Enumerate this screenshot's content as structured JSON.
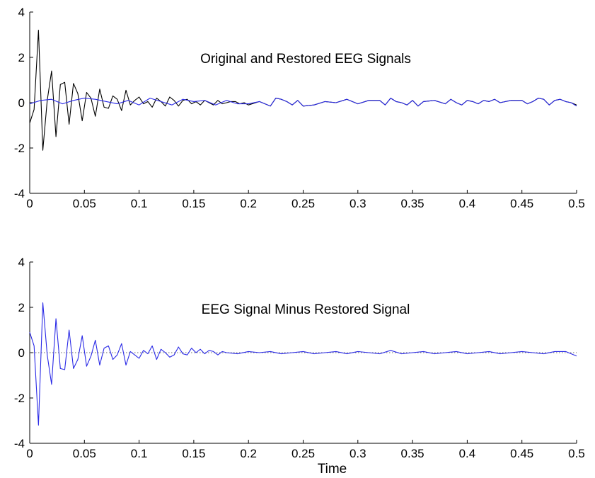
{
  "chart_data": [
    {
      "type": "line",
      "title": "Original and Restored EEG Signals",
      "xlabel": "",
      "ylabel": "",
      "xlim": [
        0,
        0.5
      ],
      "ylim": [
        -4,
        4
      ],
      "x_ticks": [
        0,
        0.05,
        0.1,
        0.15,
        0.2,
        0.25,
        0.3,
        0.35,
        0.4,
        0.45,
        0.5
      ],
      "x_tick_labels": [
        "0",
        "0.05",
        "0.1",
        "0.15",
        "0.2",
        "0.25",
        "0.3",
        "0.35",
        "0.4",
        "0.45",
        "0.5"
      ],
      "y_ticks": [
        -4,
        -2,
        0,
        2,
        4
      ],
      "y_tick_labels": [
        "-4",
        "-2",
        "0",
        "2",
        "4"
      ],
      "grid": false,
      "legend": "none",
      "series": [
        {
          "color": "#000000",
          "x": [
            0,
            0.004,
            0.008,
            0.012,
            0.016,
            0.02,
            0.024,
            0.028,
            0.032,
            0.036,
            0.04,
            0.044,
            0.048,
            0.052,
            0.056,
            0.06,
            0.064,
            0.068,
            0.072,
            0.076,
            0.08,
            0.084,
            0.088,
            0.092,
            0.096,
            0.1,
            0.104,
            0.108,
            0.112,
            0.116,
            0.12,
            0.124,
            0.128,
            0.132,
            0.136,
            0.14,
            0.144,
            0.148,
            0.152,
            0.156,
            0.16,
            0.164,
            0.168,
            0.172,
            0.176,
            0.18,
            0.184,
            0.188,
            0.192,
            0.196,
            0.2,
            0.21,
            0.22,
            0.225,
            0.23,
            0.235,
            0.24,
            0.245,
            0.25,
            0.26,
            0.27,
            0.28,
            0.29,
            0.3,
            0.31,
            0.32,
            0.325,
            0.33,
            0.335,
            0.34,
            0.345,
            0.35,
            0.355,
            0.36,
            0.37,
            0.38,
            0.385,
            0.39,
            0.395,
            0.4,
            0.405,
            0.41,
            0.415,
            0.42,
            0.425,
            0.43,
            0.44,
            0.45,
            0.455,
            0.46,
            0.465,
            0.47,
            0.475,
            0.48,
            0.485,
            0.49,
            0.495,
            0.5
          ],
          "y": [
            -0.9,
            -0.3,
            3.2,
            -2.1,
            0.1,
            1.4,
            -1.5,
            0.8,
            0.9,
            -0.95,
            0.85,
            0.4,
            -0.8,
            0.45,
            0.2,
            -0.6,
            0.6,
            -0.2,
            -0.25,
            0.3,
            0.15,
            -0.35,
            0.55,
            -0.1,
            0.1,
            0.25,
            -0.05,
            0.05,
            -0.2,
            0.2,
            0.05,
            -0.15,
            0.25,
            0.1,
            -0.15,
            0.1,
            0.15,
            -0.05,
            0.05,
            -0.1,
            0.1,
            0.0,
            -0.1,
            0.1,
            -0.05,
            0.0,
            0.05,
            0.05,
            -0.05,
            0.0,
            -0.1,
            0.05,
            -0.15,
            0.2,
            0.15,
            0.05,
            -0.1,
            0.1,
            -0.15,
            -0.1,
            0.05,
            0.0,
            0.15,
            -0.05,
            0.1,
            0.1,
            -0.1,
            0.2,
            0.05,
            0.0,
            -0.1,
            0.1,
            -0.15,
            0.05,
            0.1,
            -0.05,
            0.15,
            0.0,
            -0.1,
            0.1,
            0.05,
            -0.05,
            0.1,
            0.05,
            0.15,
            0.0,
            0.1,
            0.1,
            -0.05,
            0.05,
            0.2,
            0.15,
            -0.1,
            0.1,
            0.15,
            0.05,
            0.0,
            -0.1
          ]
        },
        {
          "color": "#2929e6",
          "x": [
            0,
            0.01,
            0.02,
            0.03,
            0.04,
            0.05,
            0.06,
            0.07,
            0.08,
            0.09,
            0.1,
            0.11,
            0.12,
            0.13,
            0.14,
            0.15,
            0.16,
            0.17,
            0.18,
            0.19,
            0.2,
            0.21,
            0.22,
            0.225,
            0.23,
            0.235,
            0.24,
            0.245,
            0.25,
            0.26,
            0.27,
            0.28,
            0.29,
            0.3,
            0.31,
            0.32,
            0.325,
            0.33,
            0.335,
            0.34,
            0.345,
            0.35,
            0.355,
            0.36,
            0.37,
            0.38,
            0.385,
            0.39,
            0.395,
            0.4,
            0.405,
            0.41,
            0.415,
            0.42,
            0.425,
            0.43,
            0.44,
            0.45,
            0.455,
            0.46,
            0.465,
            0.47,
            0.475,
            0.48,
            0.485,
            0.49,
            0.495,
            0.5
          ],
          "y": [
            -0.05,
            0.1,
            0.15,
            -0.05,
            0.1,
            0.2,
            0.15,
            0.05,
            -0.05,
            0.1,
            -0.1,
            0.2,
            0.05,
            -0.1,
            0.15,
            0.05,
            0.1,
            -0.1,
            0.1,
            -0.05,
            -0.05,
            0.05,
            -0.15,
            0.2,
            0.15,
            0.05,
            -0.1,
            0.1,
            -0.15,
            -0.1,
            0.05,
            0.0,
            0.15,
            -0.05,
            0.1,
            0.1,
            -0.1,
            0.2,
            0.05,
            0.0,
            -0.1,
            0.1,
            -0.15,
            0.05,
            0.1,
            -0.05,
            0.15,
            0.0,
            -0.1,
            0.1,
            0.05,
            -0.05,
            0.1,
            0.05,
            0.15,
            0.0,
            0.1,
            0.1,
            -0.05,
            0.05,
            0.2,
            0.15,
            -0.1,
            0.1,
            0.15,
            0.05,
            0.0,
            -0.15
          ]
        }
      ]
    },
    {
      "type": "line",
      "title": "EEG Signal Minus Restored Signal",
      "xlabel": "Time",
      "ylabel": "",
      "xlim": [
        0,
        0.5
      ],
      "ylim": [
        -4,
        4
      ],
      "x_ticks": [
        0,
        0.05,
        0.1,
        0.15,
        0.2,
        0.25,
        0.3,
        0.35,
        0.4,
        0.45,
        0.5
      ],
      "x_tick_labels": [
        "0",
        "0.05",
        "0.1",
        "0.15",
        "0.2",
        "0.25",
        "0.3",
        "0.35",
        "0.4",
        "0.45",
        "0.5"
      ],
      "y_ticks": [
        -4,
        -2,
        0,
        2,
        4
      ],
      "y_tick_labels": [
        "-4",
        "-2",
        "0",
        "2",
        "4"
      ],
      "grid": false,
      "legend": "none",
      "reference_line": {
        "y": 0,
        "style": "dotted",
        "color": "#3a3a3a"
      },
      "series": [
        {
          "color": "#2929e6",
          "x": [
            0,
            0.004,
            0.008,
            0.012,
            0.016,
            0.02,
            0.024,
            0.028,
            0.032,
            0.036,
            0.04,
            0.044,
            0.048,
            0.052,
            0.056,
            0.06,
            0.064,
            0.068,
            0.072,
            0.076,
            0.08,
            0.084,
            0.088,
            0.092,
            0.096,
            0.1,
            0.104,
            0.108,
            0.112,
            0.116,
            0.12,
            0.124,
            0.128,
            0.132,
            0.136,
            0.14,
            0.144,
            0.148,
            0.152,
            0.156,
            0.16,
            0.164,
            0.168,
            0.172,
            0.176,
            0.18,
            0.19,
            0.2,
            0.21,
            0.22,
            0.23,
            0.24,
            0.25,
            0.26,
            0.27,
            0.28,
            0.29,
            0.3,
            0.31,
            0.32,
            0.33,
            0.34,
            0.35,
            0.36,
            0.37,
            0.38,
            0.39,
            0.4,
            0.41,
            0.42,
            0.43,
            0.44,
            0.45,
            0.46,
            0.47,
            0.48,
            0.49,
            0.5
          ],
          "y": [
            0.9,
            0.3,
            -3.2,
            2.2,
            -0.1,
            -1.4,
            1.5,
            -0.7,
            -0.75,
            1.0,
            -0.7,
            -0.3,
            0.75,
            -0.6,
            -0.15,
            0.55,
            -0.55,
            0.2,
            0.3,
            -0.3,
            -0.1,
            0.4,
            -0.55,
            0.05,
            -0.1,
            -0.25,
            0.1,
            -0.05,
            0.3,
            -0.3,
            0.15,
            0.0,
            -0.2,
            -0.1,
            0.25,
            -0.05,
            -0.1,
            0.2,
            0.0,
            0.15,
            -0.05,
            0.1,
            0.05,
            -0.1,
            0.05,
            0.0,
            -0.05,
            0.05,
            0.0,
            0.05,
            -0.05,
            0.0,
            0.05,
            -0.05,
            0.0,
            0.05,
            -0.05,
            0.05,
            0.0,
            -0.05,
            0.1,
            -0.05,
            0.0,
            0.05,
            -0.05,
            0.0,
            0.05,
            -0.05,
            0.0,
            0.05,
            -0.05,
            0.0,
            0.05,
            0.0,
            -0.05,
            0.05,
            0.05,
            -0.15
          ]
        }
      ]
    }
  ]
}
